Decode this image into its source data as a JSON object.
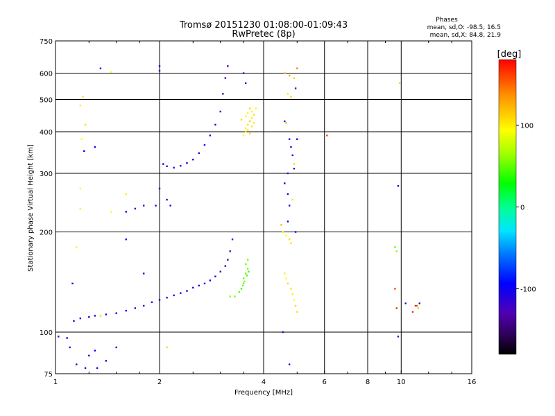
{
  "chart_data": {
    "type": "scatter",
    "title": "Tromsø 20151230 01:08:00-01:09:43",
    "subtitle": "RwPretec (8p)",
    "xlabel": "Frequency [MHz]",
    "ylabel": "Stationary phase Virtual Height [km]",
    "x_scale": "log2",
    "y_scale": "log",
    "xlim": [
      1,
      16
    ],
    "ylim": [
      75,
      750
    ],
    "x_ticks": [
      1,
      2,
      4,
      6,
      8,
      10,
      16
    ],
    "y_ticks": [
      75,
      100,
      200,
      300,
      400,
      500,
      600,
      750
    ],
    "x_gridlines": [
      2,
      4,
      6,
      8,
      10
    ],
    "y_gridlines": [
      100,
      200,
      300,
      400,
      500,
      600
    ],
    "grid": true,
    "legend": {
      "title": "Phases",
      "lines": [
        "mean, sd,O: -98.5, 16.5",
        "mean, sd,X: 84.8, 21.9"
      ]
    },
    "colorbar": {
      "label": "[deg]",
      "min": -180,
      "max": 180,
      "ticks": [
        100,
        0,
        -100
      ]
    },
    "series": [
      {
        "traces": [
          [
            1.02,
            97,
            -105
          ],
          [
            1.08,
            96,
            -100
          ],
          [
            1.13,
            108,
            -110
          ],
          [
            1.18,
            110,
            -105
          ],
          [
            1.25,
            111,
            -100
          ],
          [
            1.3,
            112,
            -110
          ],
          [
            1.4,
            113,
            -105
          ],
          [
            1.5,
            114,
            -110
          ],
          [
            1.6,
            116,
            -105
          ],
          [
            1.7,
            118,
            -110
          ],
          [
            1.8,
            120,
            -105
          ],
          [
            1.9,
            123,
            -110
          ],
          [
            2.0,
            125,
            -105
          ],
          [
            2.1,
            127,
            -100
          ],
          [
            2.2,
            129,
            -105
          ],
          [
            2.3,
            131,
            -110
          ],
          [
            2.4,
            133,
            -105
          ],
          [
            2.5,
            136,
            -100
          ],
          [
            2.6,
            138,
            -105
          ],
          [
            2.7,
            140,
            -110
          ],
          [
            2.8,
            143,
            -105
          ],
          [
            2.9,
            147,
            -100
          ],
          [
            3.0,
            152,
            -110
          ],
          [
            3.1,
            158,
            -115
          ],
          [
            3.15,
            165,
            -120
          ],
          [
            3.2,
            175,
            -125
          ],
          [
            3.25,
            190,
            -130
          ],
          [
            2.05,
            320,
            -100
          ],
          [
            2.1,
            315,
            -105
          ],
          [
            2.2,
            312,
            -110
          ],
          [
            2.3,
            316,
            -105
          ],
          [
            2.4,
            322,
            -100
          ],
          [
            2.5,
            330,
            -105
          ],
          [
            2.6,
            345,
            -110
          ],
          [
            2.7,
            365,
            -105
          ],
          [
            2.8,
            390,
            -110
          ],
          [
            2.9,
            420,
            -115
          ],
          [
            3.0,
            460,
            -120
          ],
          [
            3.05,
            520,
            -125
          ],
          [
            3.1,
            580,
            -130
          ],
          [
            3.15,
            630,
            -135
          ],
          [
            3.5,
            600,
            -120
          ],
          [
            3.55,
            560,
            -115
          ]
        ]
      },
      {
        "points": [
          [
            1.18,
            480,
            100
          ],
          [
            1.2,
            510,
            105
          ],
          [
            1.22,
            420,
            110
          ],
          [
            1.19,
            380,
            95
          ],
          [
            1.21,
            350,
            -100
          ],
          [
            1.3,
            360,
            -105
          ],
          [
            1.35,
            620,
            -110
          ],
          [
            1.6,
            230,
            -105
          ],
          [
            1.7,
            235,
            -100
          ],
          [
            1.8,
            240,
            -110
          ],
          [
            1.95,
            240,
            -105
          ],
          [
            2.0,
            270,
            -100
          ],
          [
            2.1,
            250,
            -105
          ],
          [
            2.15,
            240,
            -110
          ],
          [
            1.45,
            605,
            95
          ],
          [
            1.6,
            190,
            -100
          ],
          [
            1.8,
            150,
            -105
          ],
          [
            2.0,
            630,
            -110
          ],
          [
            2.0,
            610,
            -105
          ],
          [
            1.15,
            180,
            90
          ],
          [
            1.12,
            140,
            -100
          ],
          [
            1.1,
            90,
            -105
          ],
          [
            1.25,
            85,
            -110
          ],
          [
            1.3,
            88,
            -100
          ],
          [
            1.4,
            82,
            -105
          ],
          [
            1.5,
            90,
            -110
          ],
          [
            2.1,
            90,
            110
          ],
          [
            1.18,
            235,
            100
          ],
          [
            1.18,
            270,
            95
          ],
          [
            1.35,
            112,
            110
          ],
          [
            1.45,
            230,
            90
          ],
          [
            1.6,
            260,
            100
          ],
          [
            1.15,
            80,
            -105
          ],
          [
            1.22,
            78,
            -110
          ],
          [
            1.32,
            78,
            -100
          ]
        ]
      },
      {
        "points": [
          [
            3.55,
            410,
            100
          ],
          [
            3.6,
            420,
            105
          ],
          [
            3.65,
            430,
            110
          ],
          [
            3.7,
            440,
            100
          ],
          [
            3.75,
            450,
            105
          ],
          [
            3.7,
            460,
            95
          ],
          [
            3.65,
            470,
            110
          ],
          [
            3.8,
            470,
            100
          ],
          [
            3.5,
            390,
            95
          ],
          [
            3.55,
            400,
            105
          ],
          [
            3.6,
            405,
            100
          ],
          [
            3.65,
            395,
            110
          ],
          [
            3.7,
            415,
            105
          ],
          [
            3.75,
            425,
            100
          ],
          [
            3.6,
            455,
            95
          ],
          [
            3.55,
            445,
            100
          ],
          [
            3.45,
            435,
            110
          ],
          [
            3.5,
            145,
            50
          ],
          [
            3.55,
            150,
            55
          ],
          [
            3.6,
            155,
            60
          ],
          [
            3.5,
            140,
            45
          ],
          [
            3.45,
            135,
            40
          ],
          [
            3.4,
            132,
            50
          ],
          [
            3.3,
            128,
            55
          ],
          [
            3.2,
            128,
            60
          ],
          [
            3.55,
            160,
            50
          ],
          [
            3.6,
            165,
            55
          ],
          [
            3.58,
            148,
            45
          ],
          [
            3.52,
            142,
            60
          ],
          [
            3.48,
            138,
            50
          ],
          [
            3.62,
            152,
            40
          ]
        ]
      },
      {
        "points": [
          [
            4.6,
            600,
            120
          ],
          [
            4.75,
            590,
            130
          ],
          [
            4.9,
            580,
            110
          ],
          [
            5.0,
            620,
            140
          ],
          [
            4.7,
            520,
            100
          ],
          [
            4.8,
            510,
            110
          ],
          [
            4.6,
            430,
            -100
          ],
          [
            4.65,
            425,
            120
          ],
          [
            4.75,
            380,
            -105
          ],
          [
            4.8,
            360,
            -110
          ],
          [
            4.85,
            340,
            -100
          ],
          [
            4.9,
            310,
            -105
          ],
          [
            4.7,
            300,
            -110
          ],
          [
            4.6,
            280,
            -100
          ],
          [
            4.7,
            260,
            -105
          ],
          [
            4.75,
            240,
            -110
          ],
          [
            4.85,
            250,
            105
          ],
          [
            4.9,
            320,
            110
          ],
          [
            4.95,
            540,
            -120
          ],
          [
            5.0,
            380,
            -105
          ],
          [
            4.55,
            200,
            100
          ],
          [
            4.65,
            195,
            95
          ],
          [
            4.75,
            190,
            110
          ],
          [
            4.8,
            185,
            105
          ],
          [
            4.6,
            150,
            100
          ],
          [
            4.65,
            145,
            95
          ],
          [
            4.7,
            140,
            110
          ],
          [
            4.8,
            135,
            105
          ],
          [
            4.85,
            130,
            100
          ],
          [
            4.9,
            125,
            95
          ],
          [
            4.95,
            120,
            110
          ],
          [
            5.0,
            115,
            105
          ],
          [
            4.55,
            100,
            -110
          ],
          [
            4.75,
            80,
            -105
          ],
          [
            4.5,
            210,
            120
          ],
          [
            4.7,
            215,
            -100
          ],
          [
            4.95,
            200,
            -105
          ]
        ]
      },
      {
        "points": [
          [
            6.1,
            390,
            160
          ],
          [
            9.6,
            135,
            160
          ],
          [
            9.7,
            118,
            170
          ],
          [
            9.8,
            275,
            -100
          ],
          [
            9.9,
            560,
            110
          ],
          [
            9.6,
            180,
            50
          ],
          [
            9.7,
            175,
            60
          ],
          [
            9.8,
            97,
            -110
          ],
          [
            10.3,
            122,
            -120
          ],
          [
            10.8,
            115,
            165
          ],
          [
            11.0,
            120,
            170
          ],
          [
            11.1,
            120,
            160
          ],
          [
            11.2,
            118,
            60
          ],
          [
            11.3,
            122,
            -110
          ]
        ]
      }
    ]
  }
}
